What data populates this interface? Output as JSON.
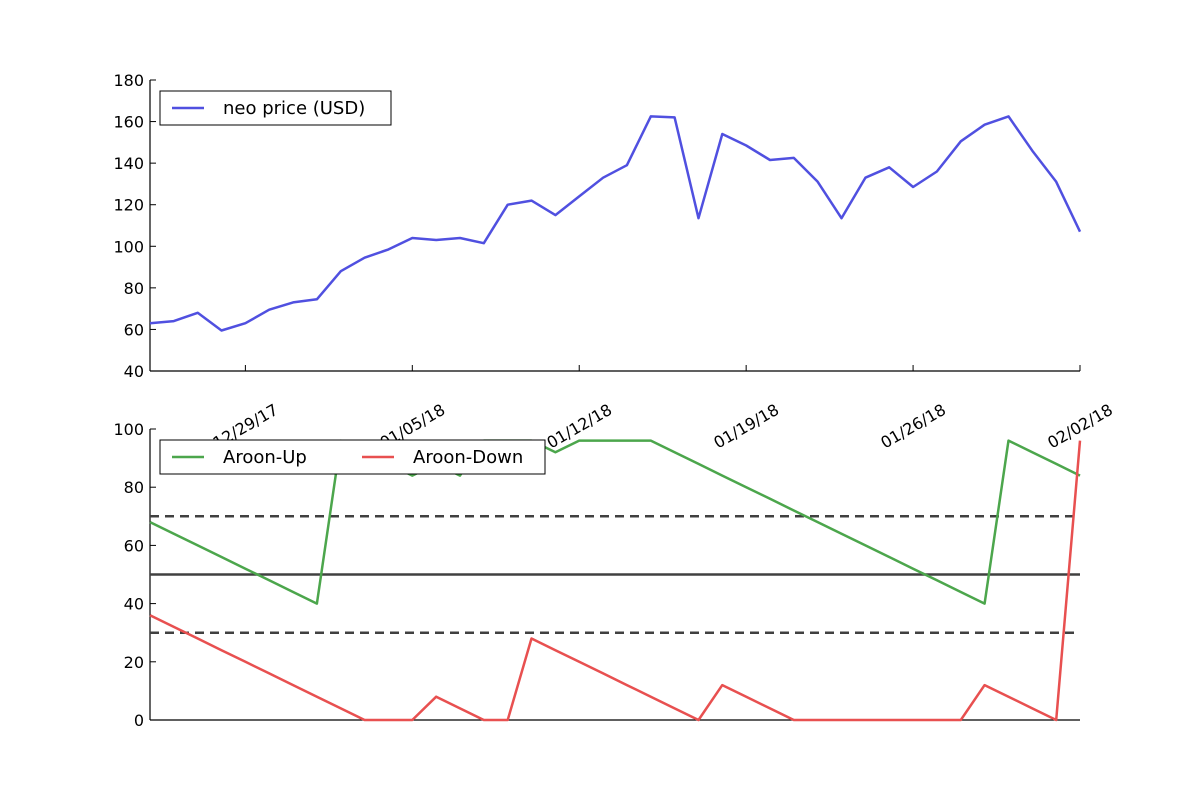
{
  "chart_data": [
    {
      "type": "line",
      "title": "",
      "xlabel": "",
      "ylabel": "",
      "ylim": [
        40,
        180
      ],
      "yticks": [
        40,
        60,
        80,
        100,
        120,
        140,
        160,
        180
      ],
      "x_dates": [
        "2017-12-25",
        "2017-12-26",
        "2017-12-27",
        "2017-12-28",
        "2017-12-29",
        "2017-12-30",
        "2017-12-31",
        "2018-01-01",
        "2018-01-02",
        "2018-01-03",
        "2018-01-04",
        "2018-01-05",
        "2018-01-06",
        "2018-01-07",
        "2018-01-08",
        "2018-01-09",
        "2018-01-10",
        "2018-01-11",
        "2018-01-12",
        "2018-01-13",
        "2018-01-14",
        "2018-01-15",
        "2018-01-16",
        "2018-01-17",
        "2018-01-18",
        "2018-01-19",
        "2018-01-20",
        "2018-01-21",
        "2018-01-22",
        "2018-01-23",
        "2018-01-24",
        "2018-01-25",
        "2018-01-26",
        "2018-01-27",
        "2018-01-28",
        "2018-01-29",
        "2018-01-30",
        "2018-01-31",
        "2018-02-01",
        "2018-02-02"
      ],
      "x_ticks": [
        "12/29/17",
        "01/05/18",
        "01/12/18",
        "01/19/18",
        "01/26/18",
        "02/02/18"
      ],
      "legend_position": "top-left",
      "grid": false,
      "series": [
        {
          "name": "neo price (USD)",
          "color": "#5050e0",
          "values": [
            63,
            64,
            68,
            59.5,
            63,
            69.5,
            73,
            74.5,
            88,
            94.5,
            98.5,
            104,
            103,
            104,
            101.5,
            120,
            122,
            115,
            124,
            133,
            139,
            162.5,
            162,
            113.5,
            154,
            148.5,
            141.5,
            142.5,
            131,
            113.5,
            133,
            138,
            128.5,
            136,
            150.5,
            158.5,
            162.5,
            146,
            131,
            107
          ]
        }
      ]
    },
    {
      "type": "line",
      "title": "",
      "xlabel": "",
      "ylabel": "",
      "ylim": [
        0,
        100
      ],
      "yticks": [
        0,
        20,
        40,
        60,
        80,
        100
      ],
      "x_dates": [
        "2017-12-25",
        "2017-12-26",
        "2017-12-27",
        "2017-12-28",
        "2017-12-29",
        "2017-12-30",
        "2017-12-31",
        "2018-01-01",
        "2018-01-02",
        "2018-01-03",
        "2018-01-04",
        "2018-01-05",
        "2018-01-06",
        "2018-01-07",
        "2018-01-08",
        "2018-01-09",
        "2018-01-10",
        "2018-01-11",
        "2018-01-12",
        "2018-01-13",
        "2018-01-14",
        "2018-01-15",
        "2018-01-16",
        "2018-01-17",
        "2018-01-18",
        "2018-01-19",
        "2018-01-20",
        "2018-01-21",
        "2018-01-22",
        "2018-01-23",
        "2018-01-24",
        "2018-01-25",
        "2018-01-26",
        "2018-01-27",
        "2018-01-28",
        "2018-01-29",
        "2018-01-30",
        "2018-01-31",
        "2018-02-01",
        "2018-02-02"
      ],
      "legend_position": "top-left",
      "grid": false,
      "reference_lines": [
        {
          "y": 70,
          "style": "dashed",
          "color": "#404040"
        },
        {
          "y": 50,
          "style": "solid",
          "color": "#404040"
        },
        {
          "y": 30,
          "style": "dashed",
          "color": "#404040"
        }
      ],
      "series": [
        {
          "name": "Aroon-Up",
          "color": "#4ca64c",
          "values": [
            68,
            64,
            60,
            56,
            52,
            48,
            44,
            40,
            96,
            92,
            88,
            84,
            88,
            84,
            96,
            96,
            96,
            92,
            96,
            96,
            96,
            96,
            92,
            88,
            84,
            80,
            76,
            72,
            68,
            64,
            60,
            56,
            52,
            48,
            44,
            40,
            96,
            92,
            88,
            84
          ]
        },
        {
          "name": "Aroon-Down",
          "color": "#e85050",
          "values": [
            36,
            32,
            28,
            24,
            20,
            16,
            12,
            8,
            4,
            0,
            0,
            0,
            8,
            4,
            0,
            0,
            28,
            24,
            20,
            16,
            12,
            8,
            4,
            0,
            12,
            8,
            4,
            0,
            0,
            0,
            0,
            0,
            0,
            0,
            0,
            12,
            8,
            4,
            0,
            96
          ]
        }
      ]
    }
  ]
}
